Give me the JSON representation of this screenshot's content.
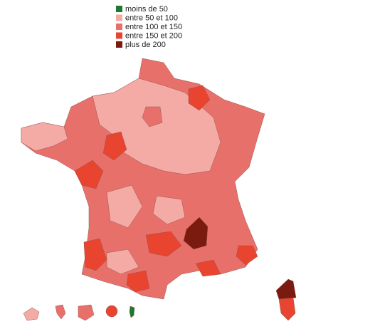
{
  "legend": {
    "items": [
      {
        "label": "moins de 50",
        "color": "#1b7a2f"
      },
      {
        "label": "entre 50 et 100",
        "color": "#f4aba5"
      },
      {
        "label": "entre 100 et 150",
        "color": "#e8706a"
      },
      {
        "label": "entre 150 et 200",
        "color": "#e8442f"
      },
      {
        "label": "plus de 200",
        "color": "#7b1a0f"
      }
    ]
  }
}
